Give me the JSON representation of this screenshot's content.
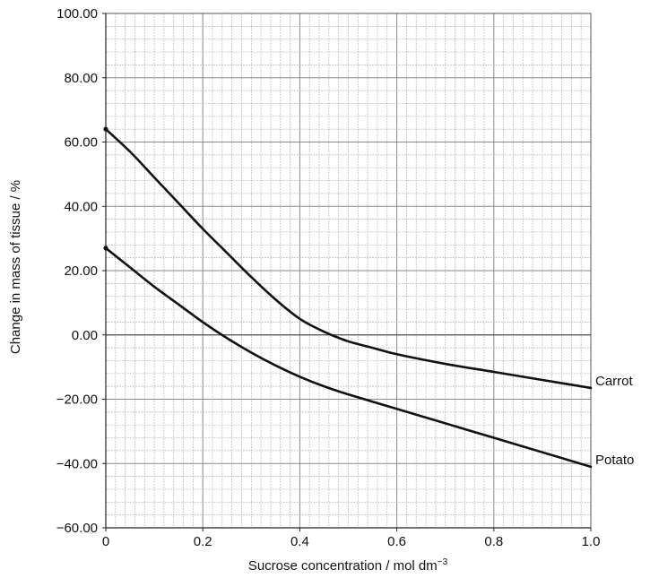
{
  "chart_data": {
    "type": "line",
    "title": "",
    "xlabel": "Sucrose concentration / mol dm",
    "xlabel_sup": "−3",
    "ylabel": "Change in mass of tissue / %",
    "xlim": [
      0,
      1.0
    ],
    "ylim": [
      -60,
      100
    ],
    "grid": true,
    "x_ticks": [
      "0",
      "0.2",
      "0.4",
      "0.6",
      "0.8",
      "1.0"
    ],
    "y_ticks": [
      "100.00",
      "80.00",
      "60.00",
      "40.00",
      "20.00",
      "0.00",
      "−20.00",
      "−40.00",
      "−60.00"
    ],
    "series": [
      {
        "name": "Carrot",
        "color": "#111111",
        "x": [
          0,
          0.05,
          0.1,
          0.15,
          0.2,
          0.25,
          0.3,
          0.35,
          0.4,
          0.45,
          0.5,
          0.55,
          0.6,
          0.7,
          0.8,
          0.9,
          1.0
        ],
        "y": [
          64,
          57,
          49,
          41,
          33,
          25.5,
          18,
          11,
          5,
          1,
          -2,
          -4,
          -6,
          -9,
          -11.5,
          -14,
          -16.5
        ]
      },
      {
        "name": "Potato",
        "color": "#111111",
        "x": [
          0,
          0.05,
          0.1,
          0.15,
          0.2,
          0.25,
          0.3,
          0.35,
          0.4,
          0.45,
          0.5,
          0.6,
          0.7,
          0.8,
          0.9,
          1.0
        ],
        "y": [
          27,
          21,
          15,
          9.5,
          4,
          -1,
          -5.5,
          -9.5,
          -13,
          -16,
          -18.5,
          -23,
          -27.5,
          -32,
          -36.5,
          -41
        ]
      }
    ]
  }
}
